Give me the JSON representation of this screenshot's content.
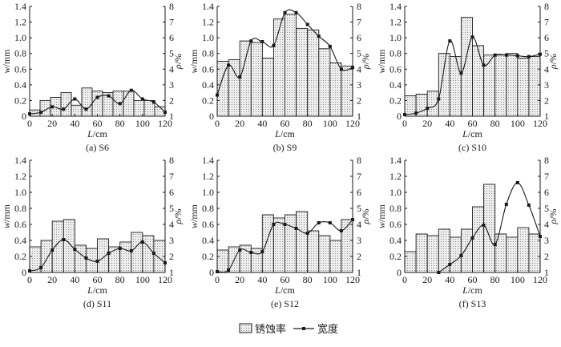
{
  "legend": {
    "bar_label": "锈蚀率",
    "line_label": "宽度"
  },
  "colors": {
    "bar_fill": "#e6e6e6",
    "stroke": "#1a1a1a"
  },
  "chart_data": [
    {
      "type": "bar+line",
      "caption": "(a) S6",
      "xlabel_var": "L",
      "xlabel_unit": "/cm",
      "ylabel_left_var": "w",
      "ylabel_left_unit": "/mm",
      "ylabel_right_var": "ρ",
      "ylabel_right_unit": "/%",
      "xlim": [
        0,
        120
      ],
      "ylim_left": [
        0,
        1.4
      ],
      "ylim_right": [
        1,
        8
      ],
      "xticks": [
        0,
        20,
        40,
        60,
        80,
        100,
        120
      ],
      "yticks_left": [
        0,
        0.2,
        0.4,
        0.6,
        0.8,
        1.0,
        1.2,
        1.4
      ],
      "yticks_right": [
        1,
        2,
        3,
        4,
        5,
        6,
        7,
        8
      ],
      "bars_corrosion_rate": [
        1.4,
        2.0,
        2.2,
        2.5,
        1.7,
        2.8,
        2.6,
        2.5,
        2.6,
        2.6,
        2.0,
        2.0,
        1.6
      ],
      "width_x": [
        0,
        10,
        20,
        30,
        40,
        50,
        60,
        70,
        80,
        90,
        100,
        110,
        120
      ],
      "width_mm": [
        0.03,
        0.05,
        0.12,
        0.09,
        0.22,
        0.09,
        0.24,
        0.26,
        0.16,
        0.33,
        0.22,
        0.18,
        0.05
      ]
    },
    {
      "type": "bar+line",
      "caption": "(b) S9",
      "xlabel_var": "L",
      "xlabel_unit": "/cm",
      "ylabel_left_var": "w",
      "ylabel_left_unit": "/mm",
      "ylabel_right_var": "ρ",
      "ylabel_right_unit": "/%",
      "xlim": [
        0,
        120
      ],
      "ylim_left": [
        0,
        1.4
      ],
      "ylim_right": [
        1,
        8
      ],
      "xticks": [
        0,
        20,
        40,
        60,
        80,
        100,
        120
      ],
      "yticks_left": [
        0,
        0.2,
        0.4,
        0.6,
        0.8,
        1.0,
        1.2,
        1.4
      ],
      "yticks_right": [
        1,
        2,
        3,
        4,
        5,
        6,
        7,
        8
      ],
      "bars_corrosion_rate": [
        4.5,
        4.6,
        5.8,
        5.7,
        4.7,
        7.2,
        7.5,
        6.6,
        6.5,
        5.3,
        4.4,
        4.2
      ],
      "width_x": [
        0,
        10,
        20,
        30,
        40,
        50,
        60,
        70,
        80,
        90,
        100,
        110,
        120
      ],
      "width_mm": [
        0.27,
        0.65,
        0.5,
        0.96,
        0.95,
        0.9,
        1.32,
        1.32,
        1.17,
        1.02,
        0.89,
        0.6,
        0.62
      ]
    },
    {
      "type": "bar+line",
      "caption": "(c) S10",
      "xlabel_var": "L",
      "xlabel_unit": "/cm",
      "ylabel_left_var": "w",
      "ylabel_left_unit": "/mm",
      "ylabel_right_var": "ρ",
      "ylabel_right_unit": "/%",
      "xlim": [
        0,
        120
      ],
      "ylim_left": [
        0,
        1.4
      ],
      "ylim_right": [
        1,
        8
      ],
      "xticks": [
        0,
        20,
        40,
        60,
        80,
        100,
        120
      ],
      "yticks_left": [
        0,
        0.2,
        0.4,
        0.6,
        0.8,
        1.0,
        1.2,
        1.4
      ],
      "yticks_right": [
        1,
        2,
        3,
        4,
        5,
        6,
        7,
        8
      ],
      "bars_corrosion_rate": [
        2.3,
        2.4,
        2.6,
        5.0,
        4.8,
        7.3,
        5.5,
        4.9,
        4.9,
        5.0,
        4.7,
        4.8
      ],
      "width_x": [
        0,
        10,
        20,
        30,
        40,
        50,
        60,
        70,
        80,
        90,
        100,
        110,
        120
      ],
      "width_mm": [
        0.02,
        0.04,
        0.1,
        0.22,
        0.96,
        0.55,
        1.01,
        0.65,
        0.78,
        0.78,
        0.77,
        0.76,
        0.79
      ]
    },
    {
      "type": "bar+line",
      "caption": "(d) S11",
      "xlabel_var": "L",
      "xlabel_unit": "/cm",
      "ylabel_left_var": "w",
      "ylabel_left_unit": "/mm",
      "ylabel_right_var": "ρ",
      "ylabel_right_unit": "/%",
      "xlim": [
        0,
        120
      ],
      "ylim_left": [
        0,
        1.4
      ],
      "ylim_right": [
        1,
        8
      ],
      "xticks": [
        0,
        20,
        40,
        60,
        80,
        100,
        120
      ],
      "yticks_left": [
        0,
        0.2,
        0.4,
        0.6,
        0.8,
        1.0,
        1.2,
        1.4
      ],
      "yticks_right": [
        1,
        2,
        3,
        4,
        5,
        6,
        7,
        8
      ],
      "bars_corrosion_rate": [
        2.6,
        3.0,
        4.2,
        4.3,
        2.7,
        2.5,
        3.1,
        2.6,
        2.9,
        3.5,
        3.3,
        3.0
      ],
      "width_x": [
        0,
        10,
        20,
        30,
        40,
        50,
        60,
        70,
        80,
        90,
        100,
        110,
        120
      ],
      "width_mm": [
        0.02,
        0.06,
        0.28,
        0.41,
        0.29,
        0.18,
        0.14,
        0.24,
        0.3,
        0.27,
        0.38,
        0.24,
        0.12
      ]
    },
    {
      "type": "bar+line",
      "caption": "(e) S12",
      "xlabel_var": "L",
      "xlabel_unit": "/cm",
      "ylabel_left_var": "w",
      "ylabel_left_unit": "/mm",
      "ylabel_right_var": "ρ",
      "ylabel_right_unit": "/%",
      "xlim": [
        0,
        120
      ],
      "ylim_left": [
        0,
        1.4
      ],
      "ylim_right": [
        1,
        8
      ],
      "xticks": [
        0,
        20,
        40,
        60,
        80,
        100,
        120
      ],
      "yticks_left": [
        0,
        0.2,
        0.4,
        0.6,
        0.8,
        1.0,
        1.2,
        1.4
      ],
      "yticks_right": [
        1,
        2,
        3,
        4,
        5,
        6,
        7,
        8
      ],
      "bars_corrosion_rate": [
        2.4,
        2.6,
        2.7,
        2.5,
        4.6,
        4.4,
        4.6,
        4.8,
        3.6,
        3.3,
        3.0,
        4.3
      ],
      "width_x": [
        0,
        10,
        20,
        30,
        40,
        50,
        60,
        70,
        80,
        90,
        100,
        110,
        120
      ],
      "width_mm": [
        0.01,
        0.03,
        0.28,
        0.25,
        0.26,
        0.6,
        0.6,
        0.55,
        0.49,
        0.62,
        0.62,
        0.52,
        0.66
      ]
    },
    {
      "type": "bar+line",
      "caption": "(f) S13",
      "xlabel_var": "L",
      "xlabel_unit": "/cm",
      "ylabel_left_var": "w",
      "ylabel_left_unit": "/mm",
      "ylabel_right_var": "ρ",
      "ylabel_right_unit": "/%",
      "xlim": [
        0,
        120
      ],
      "ylim_left": [
        0,
        1.4
      ],
      "ylim_right": [
        1,
        8
      ],
      "xticks": [
        0,
        20,
        40,
        60,
        80,
        100,
        120
      ],
      "yticks_left": [
        0,
        0.2,
        0.4,
        0.6,
        0.8,
        1.0,
        1.2,
        1.4
      ],
      "yticks_right": [
        1,
        2,
        3,
        4,
        5,
        6,
        7,
        8
      ],
      "bars_corrosion_rate": [
        2.3,
        3.4,
        3.3,
        3.7,
        3.2,
        3.7,
        5.1,
        6.5,
        3.4,
        3.2,
        3.8,
        3.4
      ],
      "width_x": [
        30,
        40,
        50,
        60,
        70,
        80,
        90,
        100,
        110,
        120
      ],
      "width_mm": [
        0.0,
        0.1,
        0.21,
        0.43,
        0.59,
        0.35,
        0.85,
        1.12,
        0.84,
        0.45
      ]
    }
  ]
}
